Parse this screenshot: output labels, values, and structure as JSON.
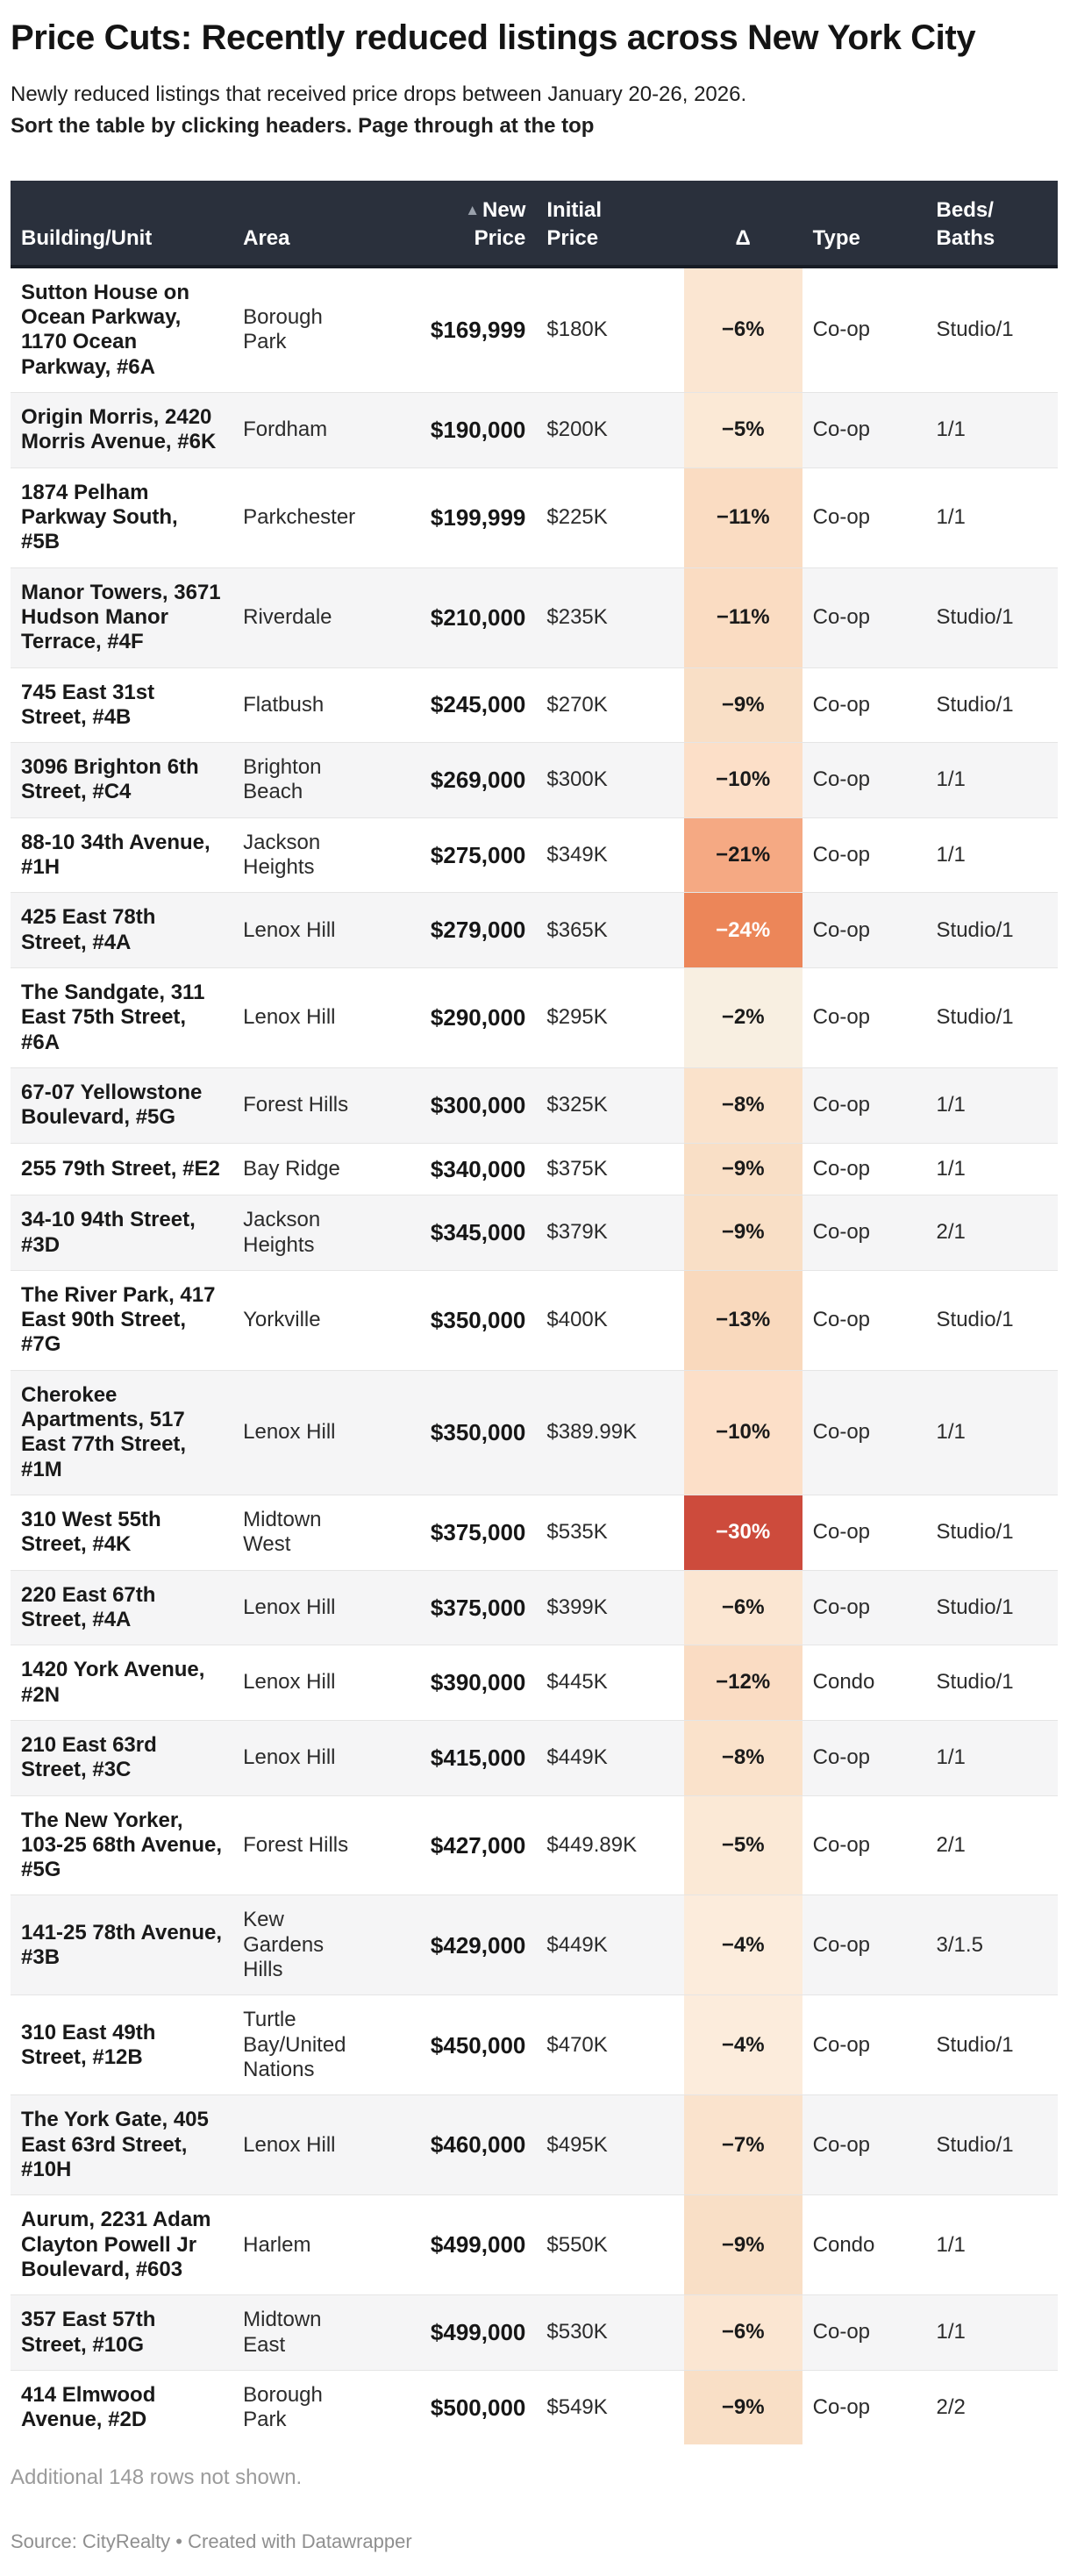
{
  "header": {
    "title": "Price Cuts: Recently reduced listings across New York City",
    "subtitle": "Newly reduced listings that received price drops between January 20-26, 2026.",
    "note": "Sort the table by clicking headers. Page through at the top"
  },
  "colors": {
    "header_bg": "#2a303c",
    "header_border": "#171c25",
    "stripe": "#f5f5f6",
    "divider": "#e5e5e5",
    "delta_red_max": "#cd4b3c",
    "delta_orange": "#ec8659",
    "delta_salmon": "#f5a983",
    "delta_light_peach": "#fbe6d2",
    "sort_icon": "#99a0ab"
  },
  "chart_data": {
    "type": "table",
    "title": "Price Cuts: Recently reduced listings across New York City",
    "columns": [
      {
        "key": "building",
        "label": "Building/Unit",
        "align": "left",
        "sorted": false
      },
      {
        "key": "area",
        "label": "Area",
        "align": "left",
        "sorted": false
      },
      {
        "key": "new_price",
        "label": "New\nPrice",
        "align": "right",
        "sorted": true,
        "sort_icon": "▲"
      },
      {
        "key": "initial_price",
        "label": "Initial\nPrice",
        "align": "left",
        "sorted": false
      },
      {
        "key": "delta",
        "label": "Δ",
        "align": "center",
        "sorted": false
      },
      {
        "key": "type",
        "label": "Type",
        "align": "left",
        "sorted": false
      },
      {
        "key": "beds_baths",
        "label": "Beds/\nBaths",
        "align": "left",
        "sorted": false
      }
    ],
    "rows": [
      {
        "building": "Sutton House on Ocean Parkway, 1170 Ocean Parkway, #6A",
        "area": "Borough Park",
        "new_price": "$169,999",
        "initial_price": "$180K",
        "delta": "−6%",
        "delta_bg": "#fbe6d2",
        "delta_color": "#1a1a1a",
        "type": "Co-op",
        "beds_baths": "Studio/1"
      },
      {
        "building": "Origin Morris, 2420 Morris Avenue, #6K",
        "area": "Fordham",
        "new_price": "$190,000",
        "initial_price": "$200K",
        "delta": "−5%",
        "delta_bg": "#fbe9d6",
        "delta_color": "#1a1a1a",
        "type": "Co-op",
        "beds_baths": "1/1"
      },
      {
        "building": "1874 Pelham Parkway South, #5B",
        "area": "Parkchester",
        "new_price": "$199,999",
        "initial_price": "$225K",
        "delta": "−11%",
        "delta_bg": "#fadcc2",
        "delta_color": "#1a1a1a",
        "type": "Co-op",
        "beds_baths": "1/1"
      },
      {
        "building": "Manor Towers, 3671 Hudson Manor Terrace, #4F",
        "area": "Riverdale",
        "new_price": "$210,000",
        "initial_price": "$235K",
        "delta": "−11%",
        "delta_bg": "#fadcc2",
        "delta_color": "#1a1a1a",
        "type": "Co-op",
        "beds_baths": "Studio/1"
      },
      {
        "building": "745 East 31st Street, #4B",
        "area": "Flatbush",
        "new_price": "$245,000",
        "initial_price": "$270K",
        "delta": "−9%",
        "delta_bg": "#f9dfc6",
        "delta_color": "#1a1a1a",
        "type": "Co-op",
        "beds_baths": "Studio/1"
      },
      {
        "building": "3096 Brighton 6th Street, #C4",
        "area": "Brighton Beach",
        "new_price": "$269,000",
        "initial_price": "$300K",
        "delta": "−10%",
        "delta_bg": "#fcdfc8",
        "delta_color": "#1a1a1a",
        "type": "Co-op",
        "beds_baths": "1/1"
      },
      {
        "building": "88-10 34th Avenue, #1H",
        "area": "Jackson Heights",
        "new_price": "$275,000",
        "initial_price": "$349K",
        "delta": "−21%",
        "delta_bg": "#f5a983",
        "delta_color": "#1a1a1a",
        "type": "Co-op",
        "beds_baths": "1/1"
      },
      {
        "building": "425 East 78th Street, #4A",
        "area": "Lenox Hill",
        "new_price": "$279,000",
        "initial_price": "$365K",
        "delta": "−24%",
        "delta_bg": "#ec8659",
        "delta_color": "#ffffff",
        "type": "Co-op",
        "beds_baths": "Studio/1"
      },
      {
        "building": "The Sandgate, 311 East 75th Street, #6A",
        "area": "Lenox Hill",
        "new_price": "$290,000",
        "initial_price": "$295K",
        "delta": "−2%",
        "delta_bg": "#f8efe1",
        "delta_color": "#1a1a1a",
        "type": "Co-op",
        "beds_baths": "Studio/1"
      },
      {
        "building": "67-07 Yellowstone Boulevard, #5G",
        "area": "Forest Hills",
        "new_price": "$300,000",
        "initial_price": "$325K",
        "delta": "−8%",
        "delta_bg": "#fae2cb",
        "delta_color": "#1a1a1a",
        "type": "Co-op",
        "beds_baths": "1/1"
      },
      {
        "building": "255 79th Street, #E2",
        "area": "Bay Ridge",
        "new_price": "$340,000",
        "initial_price": "$375K",
        "delta": "−9%",
        "delta_bg": "#f9dfc6",
        "delta_color": "#1a1a1a",
        "type": "Co-op",
        "beds_baths": "1/1"
      },
      {
        "building": "34-10 94th Street, #3D",
        "area": "Jackson Heights",
        "new_price": "$345,000",
        "initial_price": "$379K",
        "delta": "−9%",
        "delta_bg": "#f9dfc6",
        "delta_color": "#1a1a1a",
        "type": "Co-op",
        "beds_baths": "2/1"
      },
      {
        "building": "The River Park, 417 East 90th Street, #7G",
        "area": "Yorkville",
        "new_price": "$350,000",
        "initial_price": "$400K",
        "delta": "−13%",
        "delta_bg": "#f9d9bd",
        "delta_color": "#1a1a1a",
        "type": "Co-op",
        "beds_baths": "Studio/1"
      },
      {
        "building": "Cherokee Apartments, 517 East 77th Street, #1M",
        "area": "Lenox Hill",
        "new_price": "$350,000",
        "initial_price": "$389.99K",
        "delta": "−10%",
        "delta_bg": "#fcdfc8",
        "delta_color": "#1a1a1a",
        "type": "Co-op",
        "beds_baths": "1/1"
      },
      {
        "building": "310 West 55th Street, #4K",
        "area": "Midtown West",
        "new_price": "$375,000",
        "initial_price": "$535K",
        "delta": "−30%",
        "delta_bg": "#cd4b3c",
        "delta_color": "#ffffff",
        "type": "Co-op",
        "beds_baths": "Studio/1"
      },
      {
        "building": "220 East 67th Street, #4A",
        "area": "Lenox Hill",
        "new_price": "$375,000",
        "initial_price": "$399K",
        "delta": "−6%",
        "delta_bg": "#fbe6d2",
        "delta_color": "#1a1a1a",
        "type": "Co-op",
        "beds_baths": "Studio/1"
      },
      {
        "building": "1420 York Avenue, #2N",
        "area": "Lenox Hill",
        "new_price": "$390,000",
        "initial_price": "$445K",
        "delta": "−12%",
        "delta_bg": "#fadcc3",
        "delta_color": "#1a1a1a",
        "type": "Condo",
        "beds_baths": "Studio/1"
      },
      {
        "building": "210 East 63rd Street, #3C",
        "area": "Lenox Hill",
        "new_price": "$415,000",
        "initial_price": "$449K",
        "delta": "−8%",
        "delta_bg": "#fae2cb",
        "delta_color": "#1a1a1a",
        "type": "Co-op",
        "beds_baths": "1/1"
      },
      {
        "building": "The New Yorker, 103-25 68th Avenue, #5G",
        "area": "Forest Hills",
        "new_price": "$427,000",
        "initial_price": "$449.89K",
        "delta": "−5%",
        "delta_bg": "#fbe9d6",
        "delta_color": "#1a1a1a",
        "type": "Co-op",
        "beds_baths": "2/1"
      },
      {
        "building": "141-25 78th Avenue, #3B",
        "area": "Kew Gardens Hills",
        "new_price": "$429,000",
        "initial_price": "$449K",
        "delta": "−4%",
        "delta_bg": "#fcecdc",
        "delta_color": "#1a1a1a",
        "type": "Co-op",
        "beds_baths": "3/1.5"
      },
      {
        "building": "310 East 49th Street, #12B",
        "area": "Turtle Bay/United Nations",
        "new_price": "$450,000",
        "initial_price": "$470K",
        "delta": "−4%",
        "delta_bg": "#fcecdc",
        "delta_color": "#1a1a1a",
        "type": "Co-op",
        "beds_baths": "Studio/1"
      },
      {
        "building": "The York Gate, 405 East 63rd Street, #10H",
        "area": "Lenox Hill",
        "new_price": "$460,000",
        "initial_price": "$495K",
        "delta": "−7%",
        "delta_bg": "#fae3cd",
        "delta_color": "#1a1a1a",
        "type": "Co-op",
        "beds_baths": "Studio/1"
      },
      {
        "building": "Aurum, 2231 Adam Clayton Powell Jr Boulevard, #603",
        "area": "Harlem",
        "new_price": "$499,000",
        "initial_price": "$550K",
        "delta": "−9%",
        "delta_bg": "#f9dfc6",
        "delta_color": "#1a1a1a",
        "type": "Condo",
        "beds_baths": "1/1"
      },
      {
        "building": "357 East 57th Street, #10G",
        "area": "Midtown East",
        "new_price": "$499,000",
        "initial_price": "$530K",
        "delta": "−6%",
        "delta_bg": "#fbe6d2",
        "delta_color": "#1a1a1a",
        "type": "Co-op",
        "beds_baths": "1/1"
      },
      {
        "building": "414 Elmwood Avenue, #2D",
        "area": "Borough Park",
        "new_price": "$500,000",
        "initial_price": "$549K",
        "delta": "−9%",
        "delta_bg": "#f9dfc6",
        "delta_color": "#1a1a1a",
        "type": "Co-op",
        "beds_baths": "2/2"
      }
    ]
  },
  "footer": {
    "more_rows": "Additional 148 rows not shown.",
    "attribution": "Source: CityRealty • Created with Datawrapper"
  }
}
